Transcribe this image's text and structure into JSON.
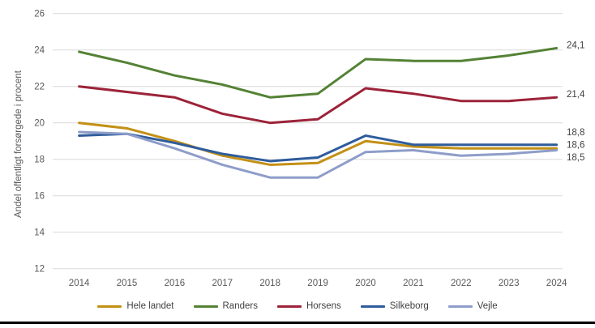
{
  "page": {
    "background": "#FFFFFF",
    "bottom_rule_color": "#000000"
  },
  "chart_data": {
    "type": "line",
    "title": "",
    "xlabel": "",
    "ylabel": "Andel offentligt forsørgede i procent",
    "ylim": [
      12,
      26
    ],
    "yticks": [
      12,
      14,
      16,
      18,
      20,
      22,
      24,
      26
    ],
    "grid": true,
    "gridline_color": "#D9D9D9",
    "axis_text_color": "#595959",
    "data_label_color": "#404040",
    "legend_position": "bottom",
    "categories": [
      "2014",
      "2015",
      "2016",
      "2017",
      "2018",
      "2019",
      "2020",
      "2021",
      "2022",
      "2023",
      "2024"
    ],
    "series": [
      {
        "name": "Hele landet",
        "color": "#C39016",
        "values": [
          20.0,
          19.7,
          19.0,
          18.2,
          17.7,
          17.8,
          19.0,
          18.7,
          18.6,
          18.6,
          18.6
        ],
        "end_label": "18,6"
      },
      {
        "name": "Randers",
        "color": "#548235",
        "values": [
          23.9,
          23.3,
          22.6,
          22.1,
          21.4,
          21.6,
          23.5,
          23.4,
          23.4,
          23.7,
          24.1
        ],
        "end_label": "24,1"
      },
      {
        "name": "Horsens",
        "color": "#9C2339",
        "values": [
          22.0,
          21.7,
          21.4,
          20.5,
          20.0,
          20.2,
          21.9,
          21.6,
          21.2,
          21.2,
          21.4
        ],
        "end_label": "21,4"
      },
      {
        "name": "Silkeborg",
        "color": "#2E5C9C",
        "values": [
          19.3,
          19.4,
          18.9,
          18.3,
          17.9,
          18.1,
          19.3,
          18.8,
          18.8,
          18.8,
          18.8
        ],
        "end_label": "18,8"
      },
      {
        "name": "Vejle",
        "color": "#8E9DC9",
        "values": [
          19.5,
          19.4,
          18.6,
          17.7,
          17.0,
          17.0,
          18.4,
          18.5,
          18.2,
          18.3,
          18.5
        ],
        "end_label": "18,5"
      }
    ]
  }
}
